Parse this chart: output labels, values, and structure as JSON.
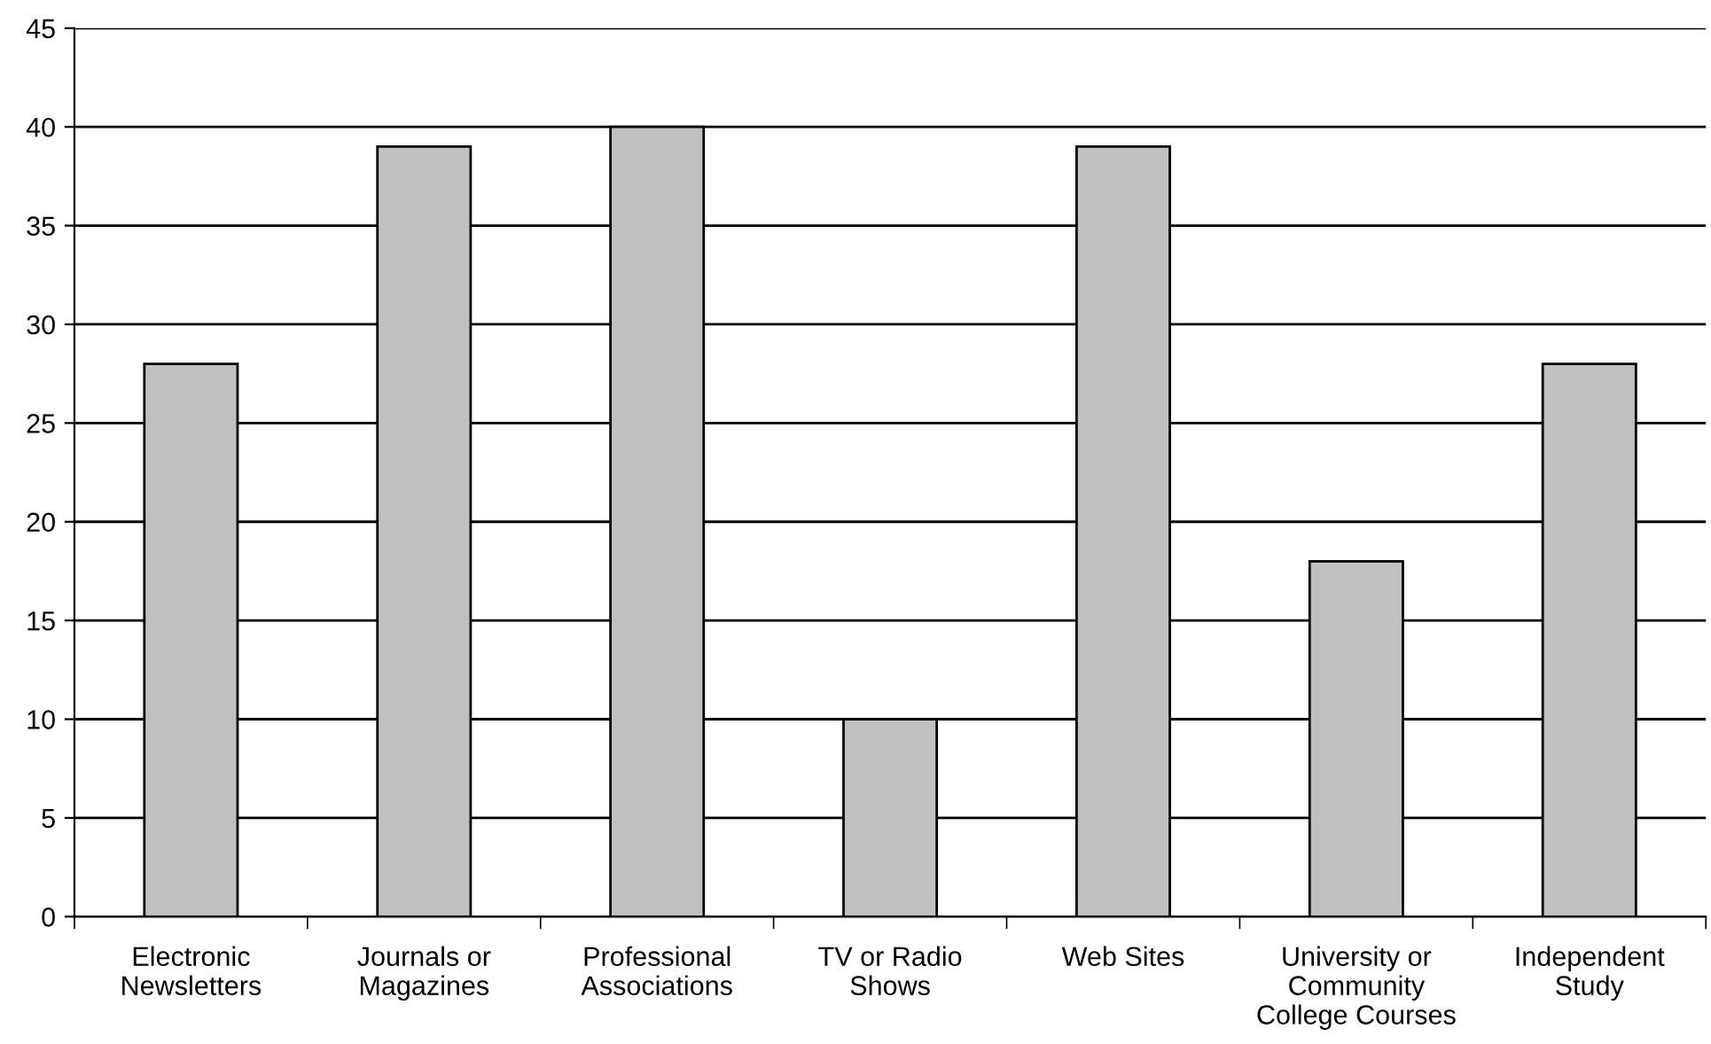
{
  "chart_data": {
    "type": "bar",
    "categories": [
      "Electronic\nNewsletters",
      "Journals or\nMagazines",
      "Professional\nAssociations",
      "TV or Radio\nShows",
      "Web Sites",
      "University or\nCommunity\nCollege Courses",
      "Independent\nStudy"
    ],
    "values": [
      28,
      39,
      40,
      10,
      39,
      18,
      28
    ],
    "color": "#c0c0c0",
    "ylim": [
      0,
      45
    ],
    "yticks": [
      0,
      5,
      10,
      15,
      20,
      25,
      30,
      35,
      40,
      45
    ],
    "grid": "y",
    "legend": false
  }
}
